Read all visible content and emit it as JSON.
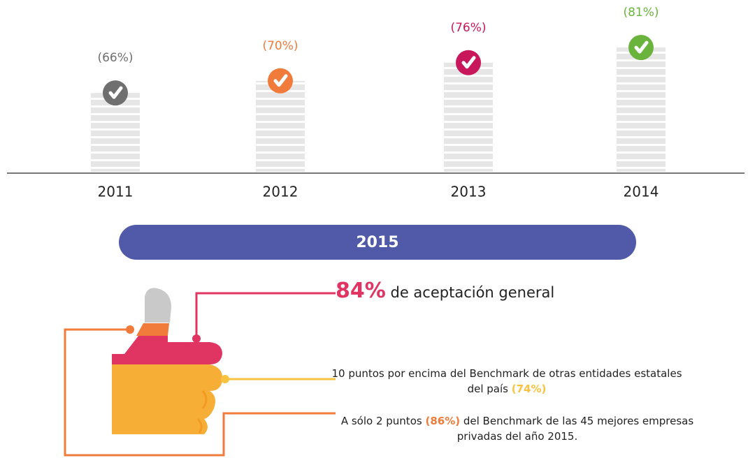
{
  "chart_data": {
    "type": "bar",
    "categories": [
      "2011",
      "2012",
      "2013",
      "2014"
    ],
    "values": [
      66,
      70,
      76,
      81
    ],
    "value_labels": [
      "(66%)",
      "(70%)",
      "(76%)",
      "(81%)"
    ],
    "colors": [
      "#6f6f6f",
      "#f07b3a",
      "#c8175b",
      "#6ab43e"
    ],
    "ylim": [
      40,
      90
    ]
  },
  "summary": {
    "banner": "2015",
    "items": [
      {
        "highlight": "84%",
        "after": "de aceptación general"
      },
      {
        "before": "10 puntos por encima del Benchmark de otras entidades estatales del país",
        "highlight": "(74%)"
      },
      {
        "before": "A sólo 2 puntos",
        "highlight": "(86%)",
        "after": "del Benchmark de las 45 mejores empresas privadas del año 2015."
      }
    ]
  }
}
